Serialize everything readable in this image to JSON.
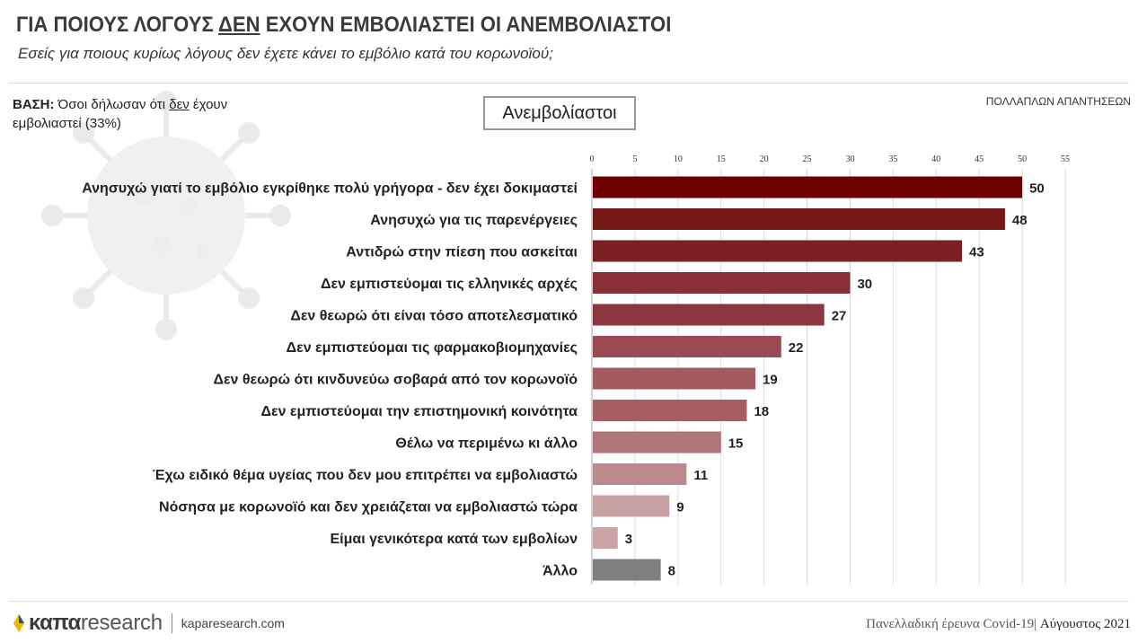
{
  "header": {
    "title_pre": "ΓΙΑ ΠΟΙΟΥΣ ΛΟΓΟΥΣ ",
    "title_emph": "ΔΕΝ",
    "title_post": " ΕΧΟΥΝ ΕΜΒΟΛΙΑΣΤΕΙ ΟΙ ΑΝΕΜΒΟΛΙΑΣΤΟΙ",
    "subtitle": "Εσείς για ποιους κυρίως λόγους δεν έχετε κάνει το εμβόλιο κατά του κορωνοϊού;"
  },
  "base": {
    "label": "ΒΑΣΗ:",
    "text_pre": " Όσοι δήλωσαν ότι ",
    "text_emph": "δεν",
    "text_post": " έχουν εμβολιαστεί (33%)"
  },
  "multi_answer": "ΠΟΛΛΑΠΛΩΝ ΑΠΑΝΤΗΣΕΩΝ",
  "group_label": "Ανεμβολίαστοι",
  "chart_data": {
    "type": "bar",
    "orientation": "horizontal",
    "categories": [
      "Ανησυχώ γιατί το εμβόλιο εγκρίθηκε πολύ γρήγορα - δεν έχει δοκιμαστεί",
      "Ανησυχώ για τις παρενέργειες",
      "Αντιδρώ στην πίεση που ασκείται",
      "Δεν εμπιστεύομαι τις ελληνικές αρχές",
      "Δεν θεωρώ ότι είναι τόσο αποτελεσματικό",
      "Δεν εμπιστεύομαι τις φαρμακοβιομηχανίες",
      "Δεν θεωρώ ότι κινδυνεύω σοβαρά από τον κορωνοϊό",
      "Δεν εμπιστεύομαι την επιστημονική κοινότητα",
      "Θέλω να περιμένω κι άλλο",
      "Έχω ειδικό θέμα υγείας που δεν μου επιτρέπει να εμβολιαστώ",
      "Νόσησα με κορωνοϊό και δεν χρειάζεται να εμβολιαστώ τώρα",
      "Είμαι γενικότερα κατά των εμβολίων",
      "Άλλο"
    ],
    "values": [
      50,
      48,
      43,
      30,
      27,
      22,
      19,
      18,
      15,
      11,
      9,
      3,
      8
    ],
    "value_labels": [
      "50",
      "48",
      "43",
      "30",
      "27",
      "22",
      "19",
      "18",
      "15",
      "11",
      "9",
      "3",
      "8"
    ],
    "colors": [
      "#6f0000",
      "#771818",
      "#7e1f25",
      "#892f37",
      "#8e363d",
      "#9a4a50",
      "#a35a5f",
      "#a75f64",
      "#b1767a",
      "#bc8a8d",
      "#c7a0a2",
      "#cca4a6",
      "#7f7f7f"
    ],
    "xlim": [
      0,
      55
    ],
    "xticks": [
      "0",
      "5",
      "10",
      "15",
      "20",
      "25",
      "30",
      "35",
      "40",
      "45",
      "50",
      "55"
    ],
    "grid": true
  },
  "footer": {
    "brand_kapa": "καπα",
    "brand_research": "research",
    "site": "kaparesearch.com",
    "survey": "Πανελλαδική έρευνα Covid-19| ",
    "month": "Αύγουστος 2021"
  }
}
